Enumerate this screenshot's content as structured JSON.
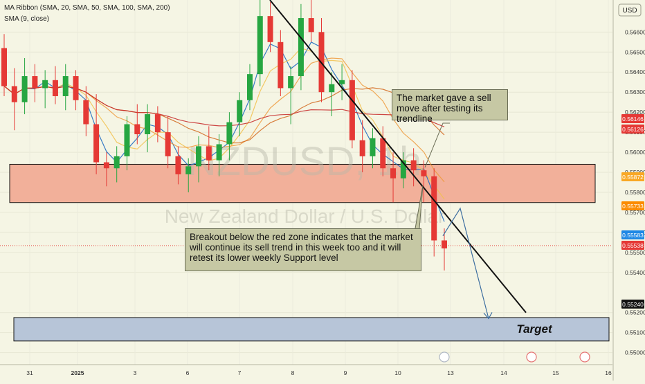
{
  "header": {
    "indicator_1": "MA Ribbon (SMA, 20, SMA, 50, SMA, 100, SMA, 200)",
    "indicator_2": "SMA (9, close)",
    "currency": "USD"
  },
  "watermark": {
    "symbol": "NZDUSD, 1h",
    "name": "New Zealand Dollar / U.S. Dollar"
  },
  "annotations": {
    "callout_top": "The market gave a sell move after testing its trendline",
    "callout_bottom": "Breakout below the red zone indicates that the market will continue its sell trend in this week too and it will retest its lower weekly Support level",
    "target_label": "Target"
  },
  "chart_data": {
    "type": "candlestick",
    "title": "",
    "ylim": [
      0.5494,
      0.5676
    ],
    "y_ticks": [
      "0.56600",
      "0.56500",
      "0.56400",
      "0.56300",
      "0.56200",
      "0.56100",
      "0.56000",
      "0.55900",
      "0.55800",
      "0.55700",
      "0.55600",
      "0.55500",
      "0.55400",
      "0.55200",
      "0.55100",
      "0.55000"
    ],
    "x_ticks": [
      "31",
      "2025",
      "3",
      "6",
      "7",
      "8",
      "9",
      "10",
      "13",
      "14",
      "15",
      "16"
    ],
    "price_badges": [
      {
        "label": "0.56146",
        "value": 0.56146,
        "color": "#e53935"
      },
      {
        "label": "0.56126",
        "value": 0.56126,
        "color": "#e53935"
      },
      {
        "label": "0.55872",
        "value": 0.55872,
        "color": "#f9a825"
      },
      {
        "label": "0.55733",
        "value": 0.55733,
        "color": "#fb8c00"
      },
      {
        "label": "0.55583",
        "value": 0.55583,
        "color": "#1e88e5"
      },
      {
        "label": "0.55538",
        "value": 0.55538,
        "color": "#e53935"
      },
      {
        "label": "0.55240",
        "value": 0.5524,
        "color": "#111111"
      }
    ],
    "zones": [
      {
        "name": "resistance-zone",
        "from": 0.55749,
        "to": 0.5594,
        "color": "#f2b09a"
      },
      {
        "name": "target-zone",
        "from": 0.55058,
        "to": 0.55175,
        "color": "#b7c5d8"
      }
    ],
    "candles": [
      [
        0.5652,
        0.5659,
        0.5628,
        0.5633
      ],
      [
        0.5633,
        0.5642,
        0.5611,
        0.5625
      ],
      [
        0.5625,
        0.5647,
        0.5619,
        0.5638
      ],
      [
        0.5638,
        0.5644,
        0.5625,
        0.5632
      ],
      [
        0.5632,
        0.5641,
        0.5622,
        0.5636
      ],
      [
        0.5636,
        0.5643,
        0.5624,
        0.5628
      ],
      [
        0.5628,
        0.5644,
        0.5621,
        0.5638
      ],
      [
        0.5638,
        0.5641,
        0.5621,
        0.5626
      ],
      [
        0.5626,
        0.5633,
        0.5608,
        0.5614
      ],
      [
        0.5614,
        0.5629,
        0.5589,
        0.5595
      ],
      [
        0.5595,
        0.56,
        0.5583,
        0.5592
      ],
      [
        0.5592,
        0.5603,
        0.5585,
        0.5598
      ],
      [
        0.5598,
        0.5618,
        0.5591,
        0.5614
      ],
      [
        0.5614,
        0.5624,
        0.5604,
        0.5609
      ],
      [
        0.5609,
        0.5624,
        0.56,
        0.5619
      ],
      [
        0.5619,
        0.5623,
        0.5605,
        0.561
      ],
      [
        0.561,
        0.5618,
        0.5592,
        0.5598
      ],
      [
        0.5598,
        0.5603,
        0.5584,
        0.5589
      ],
      [
        0.5589,
        0.5597,
        0.558,
        0.5593
      ],
      [
        0.5593,
        0.5608,
        0.5585,
        0.5603
      ],
      [
        0.5603,
        0.5613,
        0.5591,
        0.5596
      ],
      [
        0.5596,
        0.5609,
        0.5588,
        0.5604
      ],
      [
        0.5604,
        0.562,
        0.5596,
        0.5615
      ],
      [
        0.5615,
        0.563,
        0.5608,
        0.5626
      ],
      [
        0.5626,
        0.5644,
        0.5621,
        0.5639
      ],
      [
        0.5639,
        0.5676,
        0.5633,
        0.5668
      ],
      [
        0.5668,
        0.5675,
        0.565,
        0.5655
      ],
      [
        0.5655,
        0.5661,
        0.5628,
        0.5632
      ],
      [
        0.5632,
        0.5643,
        0.5614,
        0.5638
      ],
      [
        0.5638,
        0.5674,
        0.5631,
        0.5667
      ],
      [
        0.5667,
        0.5676,
        0.5655,
        0.566
      ],
      [
        0.566,
        0.5667,
        0.5625,
        0.563
      ],
      [
        0.563,
        0.564,
        0.5618,
        0.5634
      ],
      [
        0.5634,
        0.5644,
        0.5626,
        0.5636
      ],
      [
        0.5636,
        0.5641,
        0.5602,
        0.5606
      ],
      [
        0.5606,
        0.5616,
        0.559,
        0.5598
      ],
      [
        0.5598,
        0.5612,
        0.5592,
        0.5607
      ],
      [
        0.5607,
        0.5613,
        0.5588,
        0.5592
      ],
      [
        0.5592,
        0.56,
        0.5575,
        0.5587
      ],
      [
        0.5587,
        0.56,
        0.5582,
        0.5596
      ],
      [
        0.5596,
        0.5602,
        0.5583,
        0.5591
      ],
      [
        0.5591,
        0.5596,
        0.5575,
        0.5588
      ],
      [
        0.5588,
        0.5592,
        0.5548,
        0.5556
      ],
      [
        0.5556,
        0.5562,
        0.5541,
        0.5552
      ]
    ],
    "trendline": [
      [
        0.5676,
        0.552
      ]
    ],
    "projection_path": [
      0.55583,
      0.5572,
      0.5517
    ]
  }
}
